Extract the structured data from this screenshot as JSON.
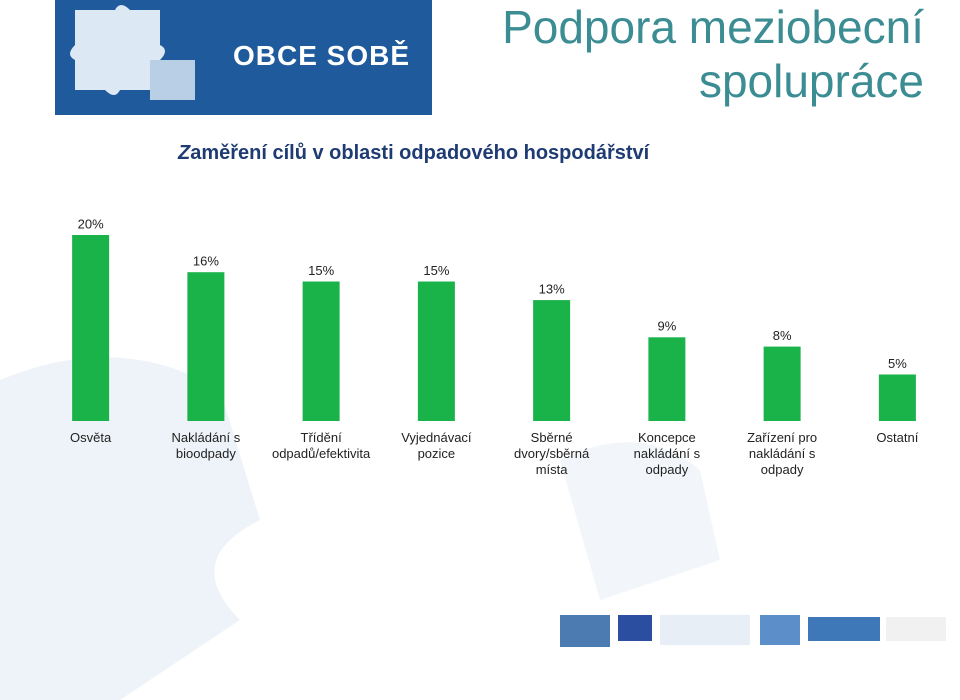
{
  "header": {
    "title": "Podpora meziobecní spolupráce",
    "logo": "OBCE SOBĚ"
  },
  "chart_data": {
    "type": "bar",
    "title": "Zaměření cílů v oblasti odpadového hospodářství",
    "categories": [
      "Osvěta",
      "Nakládání s bioodpady",
      "Třídění odpadů/efektivita",
      "Vyjednávací pozice",
      "Sběrné dvory/sběrná místa",
      "Koncepce nakládání s odpady",
      "Zařízení pro nakládání s odpady",
      "Ostatní"
    ],
    "values": [
      20,
      16,
      15,
      15,
      13,
      9,
      8,
      5
    ],
    "value_labels": [
      "20%",
      "16%",
      "15%",
      "15%",
      "13%",
      "9%",
      "8%",
      "5%"
    ],
    "color": "#1ab34a"
  }
}
